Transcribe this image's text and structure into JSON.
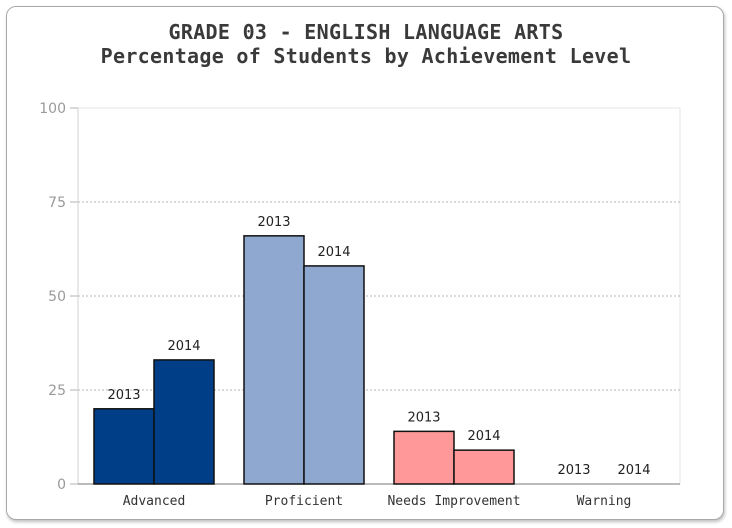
{
  "chart_data": {
    "type": "bar",
    "title": "GRADE 03 - ENGLISH LANGUAGE ARTS",
    "subtitle": "Percentage of Students by Achievement Level",
    "xlabel": "",
    "ylabel": "",
    "ylim": [
      0,
      100
    ],
    "yticks": [
      0,
      25,
      50,
      75,
      100
    ],
    "grid": true,
    "categories": [
      "Advanced",
      "Proficient",
      "Needs Improvement",
      "Warning"
    ],
    "series": [
      {
        "name": "2013",
        "values": [
          20,
          66,
          14,
          0
        ]
      },
      {
        "name": "2014",
        "values": [
          33,
          58,
          9,
          0
        ]
      }
    ],
    "category_colors": [
      "#003f87",
      "#8fa8cf",
      "#ff9999",
      "#ff9999"
    ]
  }
}
